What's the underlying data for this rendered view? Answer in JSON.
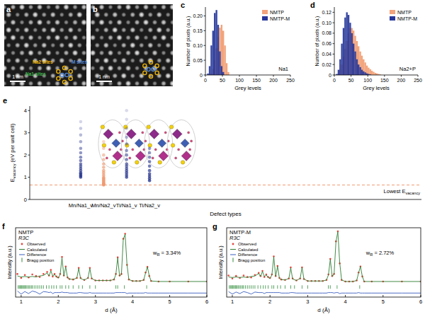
{
  "images": [
    {
      "panel": "a",
      "labels": [
        "Na2 sites",
        "M sites",
        "Na1 sites"
      ],
      "label_colors": [
        "#f2b705",
        "#4f86d9",
        "#3cb44b"
      ],
      "scale_bar": "1 nm"
    },
    {
      "panel": "b",
      "scale_bar": "1 nm"
    }
  ],
  "chart_data": [
    {
      "panel": "c",
      "type": "histogram",
      "title": "Na1",
      "x_label": "Grey levels",
      "y_label": "Number of pixels (a.u.)",
      "bins": [
        0,
        5,
        10,
        15,
        20,
        25,
        30,
        35,
        40,
        45,
        50,
        55,
        60,
        65,
        70,
        75,
        80,
        85,
        90,
        95,
        100
      ],
      "series": [
        {
          "name": "NMTP",
          "color": "#f2a37b",
          "values": [
            0,
            0,
            0,
            0.005,
            0.02,
            0.05,
            0.09,
            0.13,
            0.16,
            0.17,
            0.15,
            0.1,
            0.04,
            0.01,
            0,
            0,
            0,
            0,
            0,
            0
          ]
        },
        {
          "name": "NMTP-M",
          "color": "#26379a",
          "values": [
            0,
            0.005,
            0.03,
            0.1,
            0.15,
            0.21,
            0.22,
            0.17,
            0.08,
            0.03,
            0.01,
            0,
            0,
            0,
            0,
            0,
            0,
            0,
            0,
            0
          ]
        }
      ],
      "xlim": [
        0,
        250
      ],
      "xticks": [
        0,
        50,
        100,
        150,
        200,
        250
      ],
      "ylim": [
        0,
        0.23
      ],
      "yticks": [
        0,
        0.05,
        {
          "value": 0.1,
          "label": "0.10"
        },
        0.15,
        {
          "value": 0.2,
          "label": "0.20"
        }
      ],
      "legend": "top-right"
    },
    {
      "panel": "d",
      "type": "histogram",
      "title": "Na2+P",
      "x_label": "Grey levels",
      "y_label": "Number of pixels (a.u.)",
      "bins": [
        0,
        5,
        10,
        15,
        20,
        25,
        30,
        35,
        40,
        45,
        50,
        55,
        60,
        65,
        70,
        75,
        80,
        85,
        90,
        95,
        100,
        105,
        110,
        115,
        120,
        125,
        130,
        135,
        140,
        145,
        150,
        155,
        160
      ],
      "series": [
        {
          "name": "NMTP",
          "color": "#f2a37b",
          "values": [
            0,
            0,
            0.002,
            0.01,
            0.02,
            0.035,
            0.05,
            0.065,
            0.08,
            0.09,
            0.09,
            0.085,
            0.075,
            0.065,
            0.055,
            0.045,
            0.037,
            0.03,
            0.024,
            0.018,
            0.014,
            0.011,
            0.008,
            0.006,
            0.004,
            0.003,
            0.002,
            0.001,
            0,
            0,
            0,
            0
          ]
        },
        {
          "name": "NMTP-M",
          "color": "#26379a",
          "values": [
            0,
            0.002,
            0.01,
            0.03,
            0.06,
            0.09,
            0.11,
            0.12,
            0.115,
            0.1,
            0.08,
            0.06,
            0.045,
            0.03,
            0.02,
            0.015,
            0.01,
            0.007,
            0.005,
            0.003,
            0.002,
            0.001,
            0,
            0,
            0,
            0,
            0,
            0,
            0,
            0,
            0,
            0
          ]
        }
      ],
      "xlim": [
        0,
        250
      ],
      "xticks": [
        0,
        50,
        100,
        150,
        200,
        250
      ],
      "ylim": [
        0,
        0.13
      ],
      "yticks": [
        0,
        0.02,
        0.04,
        0.06,
        0.08,
        {
          "value": 0.1,
          "label": "0.10"
        },
        0.12
      ],
      "legend": "top-right"
    },
    {
      "panel": "e",
      "type": "scatter",
      "x_label": "Defect types",
      "y_label": [
        {
          "text": "E"
        },
        {
          "text": "vacancy",
          "sub": true
        },
        {
          "text": " (eV per unit cell)"
        }
      ],
      "categories": [
        "Mn/Na1_v",
        "Mn/Na2_v",
        "Ti/Na1_v",
        "Ti/Na2_v"
      ],
      "values": [
        [
          1.0,
          1.05,
          1.1,
          1.15,
          1.2,
          1.3,
          1.4,
          1.5,
          1.6,
          1.75,
          1.9,
          2.1,
          2.3,
          2.6,
          2.9,
          3.2,
          3.5
        ],
        [
          0.65,
          0.68,
          0.7,
          0.72,
          0.75,
          0.8,
          0.85,
          0.9,
          0.95,
          1.0,
          1.1,
          1.2,
          1.3,
          1.45,
          1.6,
          1.8,
          2.0,
          2.3,
          2.6
        ],
        [
          1.0,
          1.1,
          1.2,
          1.3,
          1.4,
          1.5,
          1.6,
          1.8,
          2.0,
          2.2,
          2.5,
          2.8,
          3.2,
          3.6,
          4.0
        ],
        [
          0.85,
          0.95,
          1.05,
          1.15,
          1.3,
          1.5,
          1.7,
          1.9,
          2.1,
          2.3
        ]
      ],
      "colors": [
        "#2b3990",
        "#ef9a72",
        "#2b3990",
        "#2b3990"
      ],
      "ylim": [
        0,
        4.2
      ],
      "yticks": [
        0,
        1,
        2,
        3,
        4
      ],
      "threshold": 0.65,
      "annotation": [
        {
          "text": "Lowest E"
        },
        {
          "text": "vacancy",
          "sub": true
        }
      ]
    },
    {
      "panel": "f",
      "type": "line",
      "title": "NMTP",
      "subtitle": "R3C",
      "annotation": [
        {
          "text": "w"
        },
        {
          "text": "R",
          "sub": true
        },
        {
          "text": " = 3.34%"
        }
      ],
      "x_label": "d (Å)",
      "y_label": "Intensity (a.u.)",
      "x": [
        0.9,
        1.0,
        1.1,
        1.2,
        1.3,
        1.4,
        1.5,
        1.6,
        1.7,
        1.75,
        1.8,
        1.85,
        1.9,
        1.95,
        2.0,
        2.05,
        2.1,
        2.15,
        2.2,
        2.25,
        2.3,
        2.4,
        2.5,
        2.55,
        2.6,
        2.7,
        2.8,
        2.85,
        2.9,
        3.0,
        3.1,
        3.2,
        3.3,
        3.4,
        3.5,
        3.55,
        3.6,
        3.65,
        3.7,
        3.75,
        3.8,
        3.85,
        3.9,
        4.0,
        4.1,
        4.2,
        4.3,
        4.35,
        4.4,
        4.45,
        4.5,
        4.7,
        5.0,
        5.5,
        6.0
      ],
      "series": [
        {
          "name": "Observed",
          "type": "scatter",
          "marker": "circle",
          "color": "#e8453c",
          "values": [
            0.16,
            0.08,
            0.14,
            0.09,
            0.15,
            0.12,
            0.1,
            0.16,
            0.2,
            0.13,
            0.24,
            0.11,
            0.16,
            0.11,
            0.09,
            0.16,
            0.5,
            0.13,
            0.31,
            0.09,
            0.06,
            0.05,
            0.08,
            0.28,
            0.08,
            0.04,
            0.08,
            0.28,
            0.07,
            0.03,
            0.03,
            0.03,
            0.03,
            0.03,
            0.05,
            0.16,
            0.49,
            0.13,
            0.16,
            0.86,
            0.96,
            0.34,
            0.05,
            0.02,
            0.02,
            0.02,
            0.04,
            0.19,
            0.3,
            0.12,
            0.02,
            0.01,
            0.01,
            0.01,
            0.01
          ]
        },
        {
          "name": "Calculated",
          "type": "line",
          "color": "#2e7d32",
          "values": [
            0.12,
            0.1,
            0.11,
            0.1,
            0.11,
            0.1,
            0.12,
            0.13,
            0.18,
            0.12,
            0.22,
            0.12,
            0.15,
            0.1,
            0.08,
            0.15,
            0.48,
            0.12,
            0.3,
            0.08,
            0.06,
            0.05,
            0.08,
            0.27,
            0.07,
            0.04,
            0.08,
            0.27,
            0.07,
            0.03,
            0.03,
            0.03,
            0.03,
            0.03,
            0.05,
            0.15,
            0.48,
            0.12,
            0.15,
            0.85,
            0.95,
            0.35,
            0.05,
            0.02,
            0.02,
            0.02,
            0.04,
            0.18,
            0.3,
            0.12,
            0.02,
            0.01,
            0.01,
            0.01,
            0.01
          ]
        },
        {
          "name": "Difference",
          "type": "line",
          "color": "#3b5fc0",
          "values": [
            -0.18,
            -0.24,
            -0.19,
            -0.23,
            -0.18,
            -0.2,
            -0.24,
            -0.19,
            -0.2,
            -0.21,
            -0.2,
            -0.23,
            -0.21,
            -0.21,
            -0.21,
            -0.21,
            -0.2,
            -0.21,
            -0.21,
            -0.21,
            -0.22,
            -0.22,
            -0.22,
            -0.21,
            -0.21,
            -0.22,
            -0.22,
            -0.21,
            -0.22,
            -0.22,
            -0.22,
            -0.22,
            -0.22,
            -0.22,
            -0.22,
            -0.21,
            -0.21,
            -0.21,
            -0.21,
            -0.21,
            -0.21,
            -0.23,
            -0.22,
            -0.22,
            -0.22,
            -0.22,
            -0.22,
            -0.21,
            -0.22,
            -0.22,
            -0.22,
            -0.22,
            -0.22,
            -0.22,
            -0.22
          ]
        }
      ],
      "bragg_positions": [
        0.92,
        0.95,
        0.98,
        1.0,
        1.02,
        1.05,
        1.08,
        1.1,
        1.13,
        1.16,
        1.2,
        1.23,
        1.27,
        1.3,
        1.35,
        1.4,
        1.45,
        1.5,
        1.55,
        1.6,
        1.68,
        1.75,
        1.82,
        1.88,
        1.95,
        2.05,
        2.1,
        2.2,
        2.28,
        2.4,
        2.55,
        2.65,
        2.85,
        3.0,
        3.55,
        3.6,
        3.78,
        4.38
      ],
      "bragg_label": "Bragg position",
      "bragg_color": "#2e8b3a",
      "xlim": [
        0.85,
        6
      ],
      "xticks": [
        1,
        2,
        3,
        4,
        5,
        6
      ],
      "ylim": [
        -0.3,
        1.08
      ],
      "tick_labels": "x",
      "legend": "top-left"
    },
    {
      "panel": "g",
      "type": "line",
      "title": "NMTP-M",
      "subtitle": "R3C",
      "annotation": [
        {
          "text": "w"
        },
        {
          "text": "R",
          "sub": true
        },
        {
          "text": " = 2.72%"
        }
      ],
      "x_label": "d (Å)",
      "y_label": "Intensity (a.u.)",
      "x": [
        0.9,
        1.0,
        1.1,
        1.2,
        1.3,
        1.4,
        1.5,
        1.6,
        1.7,
        1.75,
        1.8,
        1.85,
        1.9,
        1.95,
        2.0,
        2.05,
        2.1,
        2.15,
        2.2,
        2.25,
        2.3,
        2.4,
        2.5,
        2.55,
        2.6,
        2.7,
        2.8,
        2.85,
        2.9,
        3.0,
        3.1,
        3.2,
        3.3,
        3.4,
        3.5,
        3.55,
        3.6,
        3.65,
        3.7,
        3.75,
        3.8,
        3.85,
        3.9,
        4.0,
        4.1,
        4.2,
        4.3,
        4.35,
        4.4,
        4.45,
        4.5,
        4.7,
        5.0,
        5.5,
        6.0
      ],
      "series": [
        {
          "name": "Observed",
          "type": "scatter",
          "marker": "circle",
          "color": "#e8453c",
          "values": [
            0.13,
            0.07,
            0.12,
            0.08,
            0.13,
            0.1,
            0.09,
            0.14,
            0.18,
            0.12,
            0.22,
            0.1,
            0.15,
            0.1,
            0.08,
            0.15,
            0.51,
            0.12,
            0.32,
            0.08,
            0.05,
            0.04,
            0.07,
            0.29,
            0.07,
            0.03,
            0.07,
            0.29,
            0.06,
            0.02,
            0.02,
            0.02,
            0.02,
            0.02,
            0.04,
            0.15,
            0.46,
            0.12,
            0.16,
            0.81,
            1.01,
            0.37,
            0.04,
            0.01,
            0.01,
            0.01,
            0.03,
            0.19,
            0.31,
            0.11,
            0.01,
            0.01,
            0.01,
            0.01,
            0.01
          ]
        },
        {
          "name": "Calculated",
          "type": "line",
          "color": "#2e7d32",
          "values": [
            0.1,
            0.09,
            0.1,
            0.09,
            0.1,
            0.09,
            0.11,
            0.12,
            0.17,
            0.11,
            0.21,
            0.11,
            0.14,
            0.09,
            0.07,
            0.14,
            0.5,
            0.11,
            0.31,
            0.07,
            0.05,
            0.04,
            0.07,
            0.28,
            0.06,
            0.03,
            0.07,
            0.29,
            0.06,
            0.02,
            0.02,
            0.02,
            0.02,
            0.02,
            0.04,
            0.14,
            0.45,
            0.11,
            0.16,
            0.8,
            1.0,
            0.38,
            0.04,
            0.01,
            0.01,
            0.01,
            0.03,
            0.18,
            0.31,
            0.11,
            0.01,
            0.01,
            0.01,
            0.01,
            0.01
          ]
        },
        {
          "name": "Difference",
          "type": "line",
          "color": "#3b5fc0",
          "values": [
            -0.19,
            -0.24,
            -0.2,
            -0.23,
            -0.19,
            -0.21,
            -0.24,
            -0.2,
            -0.21,
            -0.21,
            -0.21,
            -0.23,
            -0.21,
            -0.21,
            -0.21,
            -0.21,
            -0.21,
            -0.21,
            -0.21,
            -0.21,
            -0.22,
            -0.22,
            -0.22,
            -0.21,
            -0.21,
            -0.22,
            -0.22,
            -0.22,
            -0.22,
            -0.22,
            -0.22,
            -0.22,
            -0.22,
            -0.22,
            -0.22,
            -0.21,
            -0.21,
            -0.21,
            -0.22,
            -0.21,
            -0.21,
            -0.23,
            -0.22,
            -0.22,
            -0.22,
            -0.22,
            -0.22,
            -0.21,
            -0.22,
            -0.22,
            -0.22,
            -0.22,
            -0.22,
            -0.22,
            -0.22
          ]
        }
      ],
      "bragg_positions": [
        0.92,
        0.95,
        0.98,
        1.0,
        1.02,
        1.05,
        1.08,
        1.1,
        1.13,
        1.16,
        1.2,
        1.23,
        1.27,
        1.3,
        1.35,
        1.4,
        1.45,
        1.5,
        1.55,
        1.6,
        1.68,
        1.75,
        1.82,
        1.88,
        1.95,
        2.05,
        2.1,
        2.2,
        2.28,
        2.4,
        2.55,
        2.65,
        2.85,
        3.0,
        3.55,
        3.6,
        3.78,
        4.38
      ],
      "bragg_label": "Bragg position",
      "bragg_color": "#2e8b3a",
      "xlim": [
        0.85,
        6
      ],
      "xticks": [
        1,
        2,
        3,
        4,
        5,
        6
      ],
      "ylim": [
        -0.3,
        1.08
      ],
      "tick_labels": "x",
      "legend": "top-left"
    }
  ]
}
